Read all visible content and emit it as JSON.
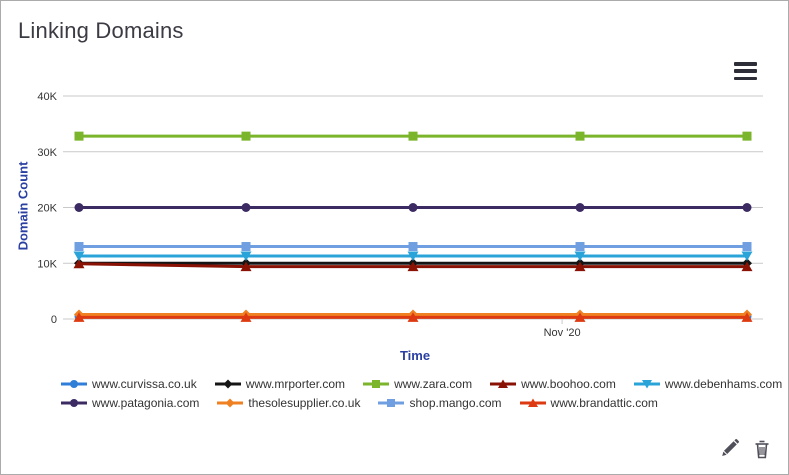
{
  "header": {
    "title": "Linking Domains"
  },
  "toolbar": {
    "menu_icon": "hamburger-icon",
    "edit_icon": "pencil-icon",
    "delete_icon": "trash-icon"
  },
  "chart_data": {
    "type": "line",
    "title": "Linking Domains",
    "xlabel": "Time",
    "ylabel": "Domain Count",
    "ylim": [
      0,
      40000
    ],
    "grid": true,
    "legend_position": "bottom",
    "yticks": [
      {
        "value": 0,
        "label": "0"
      },
      {
        "value": 10000,
        "label": "10K"
      },
      {
        "value": 20000,
        "label": "20K"
      },
      {
        "value": 30000,
        "label": "30K"
      },
      {
        "value": 40000,
        "label": "40K"
      }
    ],
    "xticks": [
      {
        "label": "Nov '20",
        "frac": 0.713
      }
    ],
    "x_point_count": 5,
    "series": [
      {
        "name": "www.curvissa.co.uk",
        "color": "#2f7ed8",
        "marker": "circle",
        "values": [
          500,
          500,
          500,
          500,
          500
        ]
      },
      {
        "name": "www.mrporter.com",
        "color": "#151515",
        "marker": "diamond",
        "values": [
          10000,
          10000,
          10000,
          10000,
          10000
        ]
      },
      {
        "name": "www.zara.com",
        "color": "#7ab52b",
        "marker": "square",
        "values": [
          32800,
          32800,
          32800,
          32800,
          32800
        ]
      },
      {
        "name": "www.boohoo.com",
        "color": "#8a1204",
        "marker": "triangle",
        "values": [
          9900,
          9400,
          9400,
          9400,
          9400
        ]
      },
      {
        "name": "www.debenhams.com",
        "color": "#29a3d8",
        "marker": "triangle-down",
        "values": [
          11300,
          11300,
          11300,
          11300,
          11300
        ]
      },
      {
        "name": "www.patagonia.com",
        "color": "#3c2b63",
        "marker": "circle",
        "values": [
          20000,
          20000,
          20000,
          20000,
          20000
        ]
      },
      {
        "name": "thesolesupplier.co.uk",
        "color": "#ef8122",
        "marker": "diamond",
        "values": [
          800,
          800,
          800,
          800,
          800
        ]
      },
      {
        "name": "shop.mango.com",
        "color": "#6f9fe0",
        "marker": "square",
        "values": [
          13000,
          13000,
          13000,
          13000,
          13000
        ]
      },
      {
        "name": "www.brandattic.com",
        "color": "#dd3a11",
        "marker": "triangle",
        "values": [
          300,
          300,
          300,
          300,
          300
        ]
      }
    ],
    "colors": {
      "grid": "#c9c9c9",
      "tick_label": "#333333",
      "axis_title": "#2a3fa2",
      "icon": "#50505a"
    },
    "legend_rows": [
      5,
      4
    ]
  }
}
